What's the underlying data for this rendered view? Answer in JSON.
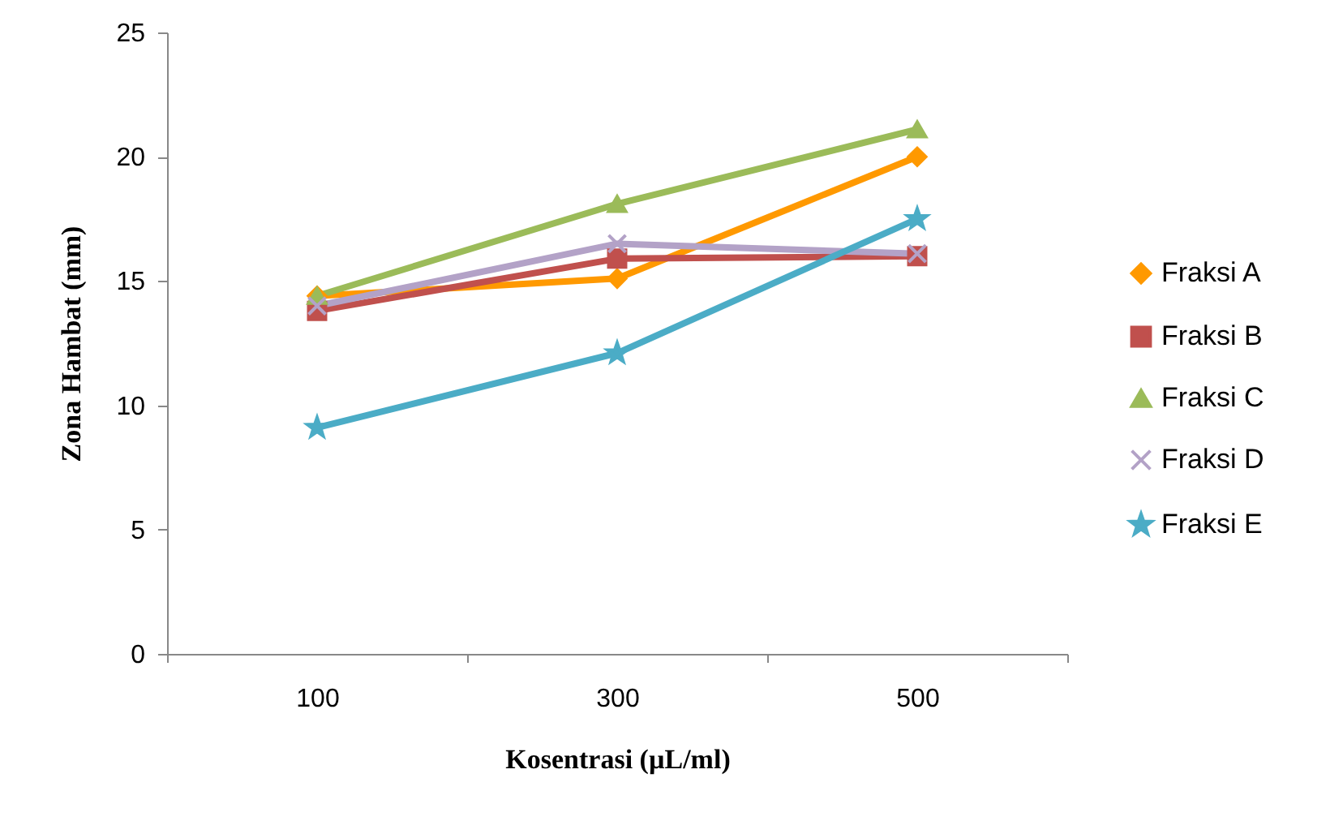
{
  "chart_data": {
    "type": "line",
    "xlabel": "Kosentrasi (µL/ml)",
    "ylabel": "Zona Hambat (mm)",
    "categories": [
      "100",
      "300",
      "500"
    ],
    "ylim": [
      0,
      25
    ],
    "yticks": [
      0,
      5,
      10,
      15,
      20,
      25
    ],
    "grid": false,
    "legend": "right",
    "line_style": "solid",
    "series": [
      {
        "name": "Fraksi A",
        "color": "#ff9900",
        "marker": "diamond",
        "values": [
          14.4,
          15.1,
          20.0
        ]
      },
      {
        "name": "Fraksi B",
        "color": "#c0504d",
        "marker": "square",
        "values": [
          13.8,
          15.9,
          16.0
        ]
      },
      {
        "name": "Fraksi C",
        "color": "#9bbb59",
        "marker": "triangle",
        "values": [
          14.4,
          18.1,
          21.1
        ]
      },
      {
        "name": "Fraksi D",
        "color": "#b3a2c7",
        "marker": "cross",
        "values": [
          14.0,
          16.5,
          16.1
        ]
      },
      {
        "name": "Fraksi E",
        "color": "#4bacc6",
        "marker": "star",
        "values": [
          9.1,
          12.1,
          17.5
        ]
      }
    ]
  }
}
